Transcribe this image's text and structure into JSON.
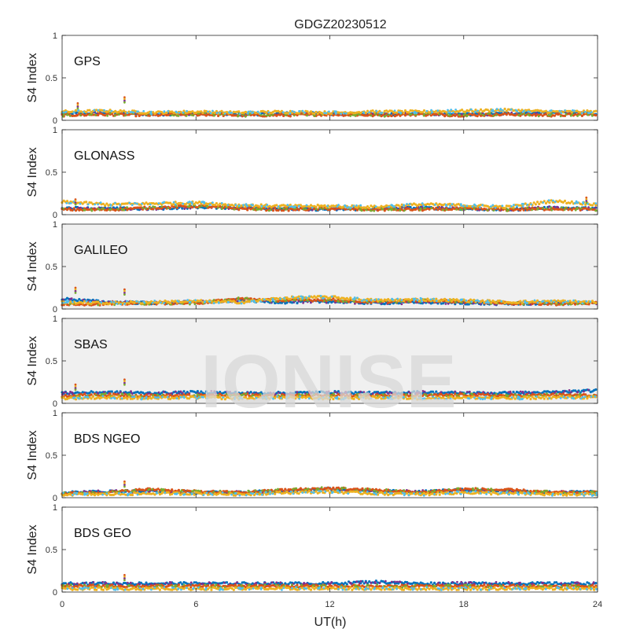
{
  "chart_data": {
    "type": "scatter",
    "title": "GDGZ20230512",
    "xlabel": "UT(h)",
    "ylabel": "S4 Index",
    "xlim": [
      0,
      24
    ],
    "ylim": [
      0,
      1
    ],
    "xticks": [
      0,
      6,
      12,
      18,
      24
    ],
    "yticks": [
      0,
      0.5,
      1
    ],
    "ytick_labels": [
      "0",
      "0.5",
      "1"
    ],
    "watermark": "IONISE",
    "series_colors": [
      "#0072BD",
      "#D95319",
      "#EDB120",
      "#7E2F8E",
      "#77AC30",
      "#4DBEEE",
      "#A2142F"
    ],
    "panels": [
      {
        "name": "GPS",
        "bg": "#ffffff",
        "series": [
          {
            "x": [
              0,
              2,
              4,
              6,
              8,
              10,
              12,
              14,
              16,
              18,
              20,
              22,
              24
            ],
            "y": [
              0.08,
              0.09,
              0.07,
              0.08,
              0.07,
              0.08,
              0.08,
              0.07,
              0.08,
              0.07,
              0.08,
              0.09,
              0.08
            ]
          },
          {
            "x": [
              0,
              2,
              4,
              6,
              8,
              10,
              12,
              14,
              16,
              18,
              20,
              22,
              24
            ],
            "y": [
              0.06,
              0.07,
              0.06,
              0.07,
              0.06,
              0.06,
              0.07,
              0.06,
              0.07,
              0.06,
              0.07,
              0.06,
              0.07
            ]
          },
          {
            "x": [
              0,
              2,
              4,
              6,
              8,
              10,
              12,
              14,
              16,
              18,
              20,
              22,
              24
            ],
            "y": [
              0.1,
              0.11,
              0.09,
              0.1,
              0.09,
              0.1,
              0.09,
              0.1,
              0.1,
              0.11,
              0.12,
              0.1,
              0.1
            ]
          }
        ],
        "spikes": [
          {
            "x": 0.7,
            "y": 0.2
          },
          {
            "x": 2.8,
            "y": 0.27
          }
        ]
      },
      {
        "name": "GLONASS",
        "bg": "#ffffff",
        "series": [
          {
            "x": [
              0,
              2,
              4,
              6,
              8,
              10,
              12,
              14,
              16,
              18,
              20,
              22,
              24
            ],
            "y": [
              0.08,
              0.07,
              0.07,
              0.09,
              0.08,
              0.07,
              0.06,
              0.07,
              0.08,
              0.07,
              0.06,
              0.08,
              0.07
            ]
          },
          {
            "x": [
              0,
              2,
              4,
              6,
              8,
              10,
              12,
              14,
              16,
              18,
              20,
              22,
              24
            ],
            "y": [
              0.06,
              0.06,
              0.08,
              0.1,
              0.07,
              0.06,
              0.07,
              0.06,
              0.06,
              0.07,
              0.06,
              0.07,
              0.06
            ]
          },
          {
            "x": [
              0,
              2,
              4,
              6,
              8,
              10,
              12,
              14,
              16,
              18,
              20,
              22,
              24
            ],
            "y": [
              0.15,
              0.12,
              0.13,
              0.14,
              0.11,
              0.1,
              0.1,
              0.09,
              0.12,
              0.11,
              0.09,
              0.16,
              0.12
            ]
          }
        ],
        "spikes": [
          {
            "x": 0.6,
            "y": 0.18
          },
          {
            "x": 23.5,
            "y": 0.2
          }
        ]
      },
      {
        "name": "GALILEO",
        "bg": "#f0f0f0",
        "series": [
          {
            "x": [
              0,
              2,
              4,
              6,
              8,
              10,
              12,
              14,
              16,
              18,
              20,
              22,
              24
            ],
            "y": [
              0.12,
              0.08,
              0.07,
              0.08,
              0.1,
              0.08,
              0.09,
              0.07,
              0.08,
              0.07,
              0.06,
              0.07,
              0.07
            ]
          },
          {
            "x": [
              0,
              2,
              4,
              6,
              8,
              10,
              12,
              14,
              16,
              18,
              20,
              22,
              24
            ],
            "y": [
              0.06,
              0.06,
              0.07,
              0.07,
              0.12,
              0.1,
              0.11,
              0.08,
              0.1,
              0.09,
              0.07,
              0.06,
              0.07
            ]
          },
          {
            "x": [
              0,
              2,
              4,
              6,
              8,
              10,
              12,
              14,
              16,
              18,
              20,
              22,
              24
            ],
            "y": [
              0.08,
              0.07,
              0.08,
              0.09,
              0.08,
              0.13,
              0.14,
              0.1,
              0.11,
              0.1,
              0.08,
              0.09,
              0.08
            ]
          }
        ],
        "spikes": [
          {
            "x": 0.6,
            "y": 0.25
          },
          {
            "x": 2.8,
            "y": 0.23
          }
        ]
      },
      {
        "name": "SBAS",
        "bg": "#f0f0f0",
        "series": [
          {
            "x": [
              0,
              2,
              4,
              6,
              8,
              10,
              12,
              14,
              16,
              18,
              20,
              22,
              24
            ],
            "y": [
              0.12,
              0.13,
              0.12,
              0.13,
              0.12,
              0.12,
              0.13,
              0.12,
              0.13,
              0.12,
              0.12,
              0.13,
              0.15
            ]
          },
          {
            "x": [
              0,
              2,
              4,
              6,
              8,
              10,
              12,
              14,
              16,
              18,
              20,
              22,
              24
            ],
            "y": [
              0.09,
              0.1,
              0.09,
              0.09,
              0.1,
              0.09,
              0.1,
              0.09,
              0.09,
              0.1,
              0.09,
              0.1,
              0.09
            ]
          },
          {
            "x": [
              0,
              2,
              4,
              6,
              8,
              10,
              12,
              14,
              16,
              18,
              20,
              22,
              24
            ],
            "y": [
              0.06,
              0.07,
              0.06,
              0.07,
              0.06,
              0.07,
              0.06,
              0.07,
              0.06,
              0.07,
              0.06,
              0.07,
              0.07
            ]
          }
        ],
        "spikes": [
          {
            "x": 0.6,
            "y": 0.22
          },
          {
            "x": 2.8,
            "y": 0.28
          }
        ]
      },
      {
        "name": "BDS NGEO",
        "bg": "#ffffff",
        "series": [
          {
            "x": [
              0,
              2,
              4,
              6,
              8,
              10,
              12,
              14,
              16,
              18,
              20,
              22,
              24
            ],
            "y": [
              0.06,
              0.07,
              0.08,
              0.06,
              0.06,
              0.08,
              0.1,
              0.08,
              0.07,
              0.09,
              0.08,
              0.06,
              0.07
            ]
          },
          {
            "x": [
              0,
              2,
              4,
              6,
              8,
              10,
              12,
              14,
              16,
              18,
              20,
              22,
              24
            ],
            "y": [
              0.05,
              0.06,
              0.1,
              0.07,
              0.06,
              0.09,
              0.11,
              0.09,
              0.06,
              0.1,
              0.09,
              0.06,
              0.06
            ]
          },
          {
            "x": [
              0,
              2,
              4,
              6,
              8,
              10,
              12,
              14,
              16,
              18,
              20,
              22,
              24
            ],
            "y": [
              0.04,
              0.04,
              0.05,
              0.05,
              0.04,
              0.06,
              0.07,
              0.05,
              0.04,
              0.06,
              0.05,
              0.04,
              0.04
            ]
          }
        ],
        "spikes": [
          {
            "x": 2.8,
            "y": 0.19
          }
        ]
      },
      {
        "name": "BDS GEO",
        "bg": "#ffffff",
        "series": [
          {
            "x": [
              0,
              2,
              4,
              6,
              8,
              10,
              12,
              14,
              16,
              18,
              20,
              22,
              24
            ],
            "y": [
              0.1,
              0.1,
              0.1,
              0.1,
              0.1,
              0.1,
              0.1,
              0.12,
              0.1,
              0.1,
              0.1,
              0.1,
              0.1
            ]
          },
          {
            "x": [
              0,
              2,
              4,
              6,
              8,
              10,
              12,
              14,
              16,
              18,
              20,
              22,
              24
            ],
            "y": [
              0.07,
              0.07,
              0.07,
              0.07,
              0.07,
              0.07,
              0.07,
              0.07,
              0.07,
              0.07,
              0.07,
              0.07,
              0.07
            ]
          },
          {
            "x": [
              0,
              2,
              4,
              6,
              8,
              10,
              12,
              14,
              16,
              18,
              20,
              22,
              24
            ],
            "y": [
              0.04,
              0.04,
              0.04,
              0.04,
              0.04,
              0.04,
              0.04,
              0.04,
              0.04,
              0.04,
              0.04,
              0.04,
              0.04
            ]
          }
        ],
        "spikes": [
          {
            "x": 2.8,
            "y": 0.2
          }
        ]
      }
    ]
  }
}
